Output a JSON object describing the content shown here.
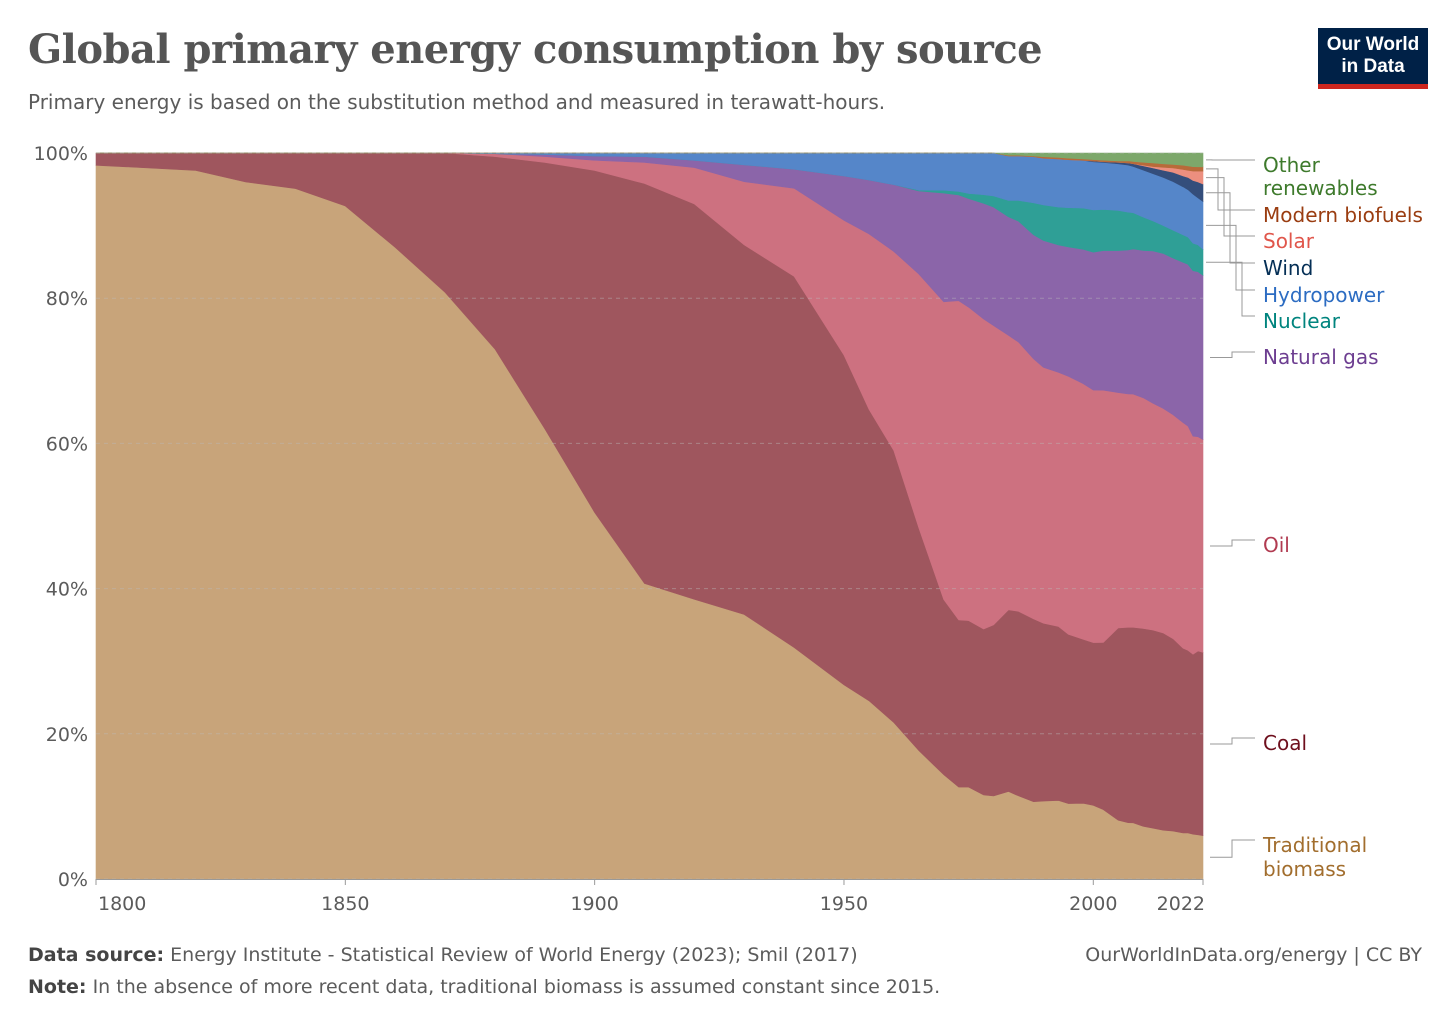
{
  "title": "Global primary energy consumption by source",
  "subtitle": "Primary energy is based on the substitution method and measured in terawatt-hours.",
  "logo": {
    "line1": "Our World",
    "line2": "in Data",
    "bg_color": "#002147",
    "accent_color": "#ce261e"
  },
  "footer": {
    "source_label": "Data source:",
    "source_text": "Energy Institute - Statistical Review of World Energy (2023); Smil (2017)",
    "note_label": "Note:",
    "note_text": "In the absence of more recent data, traditional biomass is assumed constant since 2015.",
    "right_text": "OurWorldInData.org/energy | CC BY"
  },
  "chart_data": {
    "type": "area",
    "stacked": true,
    "percent": true,
    "x_ticks": [
      1800,
      1850,
      1900,
      1950,
      2000,
      2022
    ],
    "y_ticks": [
      "0%",
      "20%",
      "40%",
      "60%",
      "80%",
      "100%"
    ],
    "ylim": [
      0,
      100
    ],
    "xlim": [
      1800,
      2022
    ],
    "grid": "horizontal dashed",
    "legend_placement": "right",
    "x": [
      1800,
      1820,
      1830,
      1840,
      1850,
      1860,
      1870,
      1880,
      1890,
      1900,
      1910,
      1920,
      1930,
      1940,
      1950,
      1955,
      1960,
      1965,
      1970,
      1973,
      1975,
      1978,
      1980,
      1983,
      1985,
      1988,
      1990,
      1993,
      1995,
      1998,
      2000,
      2002,
      2005,
      2007,
      2008,
      2010,
      2012,
      2014,
      2016,
      2018,
      2019,
      2020,
      2021,
      2022
    ],
    "series": [
      {
        "name": "Traditional biomass",
        "color": "#c8a47a",
        "label_color": "#a26e2e",
        "values": [
          98.3,
          97.6,
          96,
          95.1,
          92.7,
          87,
          80.8,
          73,
          62,
          50.5,
          40.7,
          38.4,
          36,
          31.5,
          26.2,
          23.8,
          21.3,
          17.3,
          14.3,
          12.7,
          12.7,
          11.5,
          11.2,
          11.8,
          11.2,
          10.4,
          10.5,
          10.6,
          10.2,
          10.3,
          10.1,
          9.6,
          8.2,
          7.9,
          7.9,
          7.4,
          7.1,
          6.8,
          6.7,
          6.4,
          6.4,
          6.2,
          6.1,
          6.0
        ]
      },
      {
        "name": "Coal",
        "color": "#9f565e",
        "label_color": "#6e0f1d",
        "values": [
          1.7,
          2.4,
          4,
          4.9,
          7.3,
          13,
          19.2,
          26.5,
          36.7,
          47.1,
          55.1,
          54.3,
          50.3,
          50.5,
          44.5,
          38.9,
          37,
          30,
          24,
          23.1,
          23,
          22.7,
          23.1,
          24.5,
          24.9,
          24.6,
          24,
          23.5,
          22.9,
          22.3,
          22.3,
          23.1,
          26.8,
          27.4,
          27.5,
          27.8,
          27.7,
          27.5,
          26.9,
          25.7,
          25.4,
          24.9,
          25.4,
          25.3
        ]
      },
      {
        "name": "Oil",
        "color": "#cd7180",
        "label_color": "#b13b51",
        "values": [
          0,
          0,
          0,
          0,
          0,
          0,
          0,
          0.4,
          0.8,
          1.4,
          2.9,
          5,
          8.6,
          12,
          18.2,
          23.4,
          27.1,
          34.2,
          40.8,
          44.1,
          43.3,
          42.4,
          40.4,
          37,
          36.3,
          35,
          34.5,
          34.3,
          34.9,
          34.8,
          34.6,
          34.9,
          32.8,
          32.7,
          32.8,
          32.4,
          31.7,
          31.3,
          31.3,
          31.4,
          31.2,
          30.2,
          29.6,
          29.4
        ]
      },
      {
        "name": "Natural gas",
        "color": "#8b65a9",
        "label_color": "#6d3e91",
        "values": [
          0,
          0,
          0,
          0,
          0,
          0,
          0,
          0,
          0.3,
          0.6,
          0.8,
          1,
          2.3,
          2.6,
          6,
          7.2,
          9.1,
          11.2,
          14.9,
          14.6,
          15,
          15.8,
          16,
          16,
          16.3,
          16.7,
          17.1,
          17.2,
          17.5,
          18.3,
          18.9,
          19.3,
          19.8,
          20.2,
          20.4,
          20.7,
          21.3,
          21.6,
          21.9,
          22.3,
          22.5,
          22.9,
          22.8,
          22.7
        ]
      },
      {
        "name": "Nuclear",
        "color": "#2f9f96",
        "label_color": "#00847e",
        "values": [
          0,
          0,
          0,
          0,
          0,
          0,
          0,
          0,
          0,
          0,
          0,
          0,
          0,
          0,
          0,
          0,
          0,
          0.1,
          0.4,
          0.5,
          0.7,
          1.2,
          1.5,
          2.2,
          2.8,
          4.3,
          4.8,
          5.1,
          5.3,
          5.6,
          5.8,
          5.7,
          5.6,
          5.3,
          5.1,
          4.7,
          4.2,
          3.9,
          3.9,
          3.8,
          3.8,
          3.8,
          3.7,
          3.6
        ]
      },
      {
        "name": "Hydropower",
        "color": "#5586c9",
        "label_color": "#2c6cc2",
        "values": [
          0,
          0,
          0,
          0,
          0,
          0,
          0,
          0.1,
          0.2,
          0.4,
          0.5,
          1,
          1.6,
          2.2,
          3.1,
          3.6,
          4.3,
          5,
          5.1,
          5.3,
          5.6,
          5.7,
          5.8,
          6,
          6,
          6.2,
          6.3,
          6.5,
          6.5,
          6.5,
          6.6,
          6.5,
          6.5,
          6.6,
          6.5,
          6.6,
          6.6,
          6.7,
          6.8,
          6.7,
          6.6,
          6.8,
          6.5,
          6.6
        ]
      },
      {
        "name": "Wind",
        "color": "#344e7b",
        "label_color": "#052f56",
        "values": [
          0,
          0,
          0,
          0,
          0,
          0,
          0,
          0,
          0,
          0,
          0,
          0,
          0,
          0,
          0,
          0,
          0,
          0,
          0,
          0,
          0,
          0,
          0,
          0,
          0,
          0,
          0,
          0,
          0,
          0,
          0.1,
          0.1,
          0.2,
          0.3,
          0.4,
          0.6,
          0.8,
          1,
          1.3,
          1.5,
          1.7,
          1.9,
          2.2,
          2.4
        ]
      },
      {
        "name": "Solar",
        "color": "#ec8f7f",
        "label_color": "#e0564b",
        "values": [
          0,
          0,
          0,
          0,
          0,
          0,
          0,
          0,
          0,
          0,
          0,
          0,
          0,
          0,
          0,
          0,
          0,
          0,
          0,
          0,
          0,
          0,
          0,
          0,
          0,
          0,
          0,
          0,
          0,
          0,
          0,
          0,
          0,
          0,
          0,
          0.1,
          0.2,
          0.4,
          0.6,
          0.9,
          1,
          1.3,
          1.5,
          1.8
        ]
      },
      {
        "name": "Modern biofuels",
        "color": "#b86b3a",
        "label_color": "#9a3d11",
        "values": [
          0,
          0,
          0,
          0,
          0,
          0,
          0,
          0,
          0,
          0,
          0,
          0,
          0,
          0,
          0,
          0,
          0,
          0,
          0,
          0,
          0,
          0,
          0,
          0.1,
          0.1,
          0.1,
          0.2,
          0.2,
          0.2,
          0.2,
          0.2,
          0.2,
          0.2,
          0.3,
          0.3,
          0.4,
          0.5,
          0.5,
          0.5,
          0.6,
          0.6,
          0.6,
          0.6,
          0.6
        ]
      },
      {
        "name": "Other renewables",
        "color": "#7da86b",
        "label_color": "#3e7a2c",
        "values": [
          0,
          0,
          0,
          0,
          0,
          0,
          0,
          0,
          0,
          0,
          0,
          0,
          0,
          0,
          0,
          0,
          0,
          0,
          0,
          0,
          0,
          0,
          0,
          0.3,
          0.3,
          0.4,
          0.5,
          0.6,
          0.7,
          0.8,
          0.9,
          1,
          1.1,
          1.1,
          1.2,
          1.3,
          1.4,
          1.5,
          1.6,
          1.7,
          1.8,
          1.9,
          1.9,
          1.9
        ]
      }
    ]
  }
}
